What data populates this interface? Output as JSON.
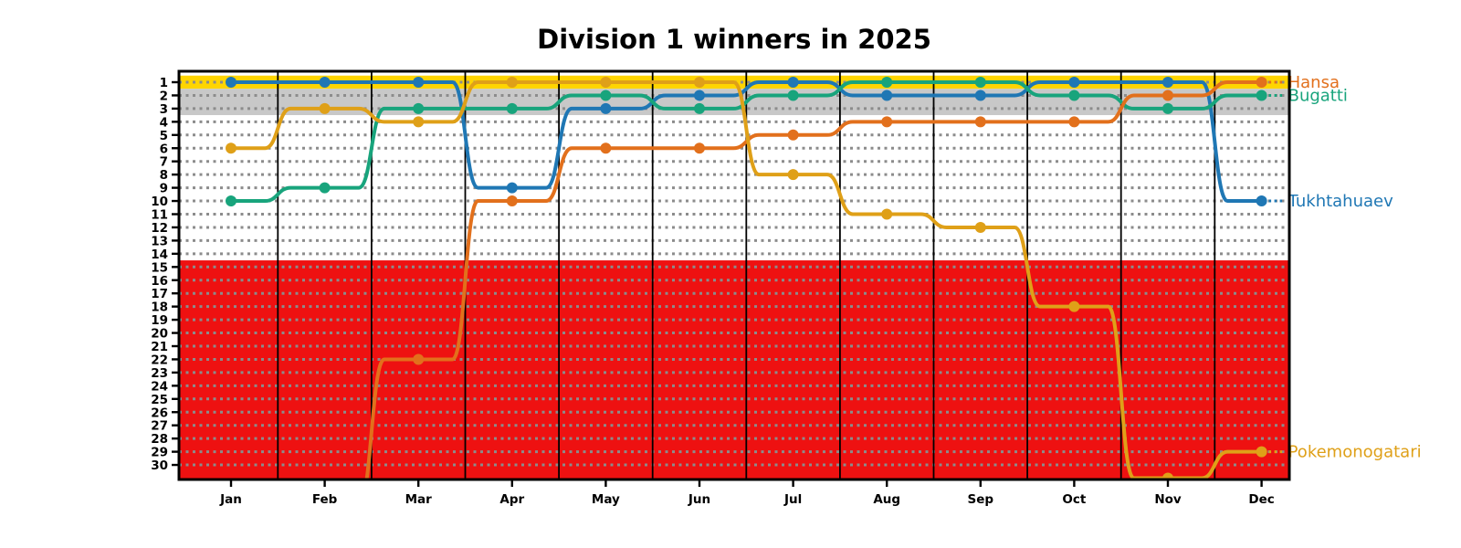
{
  "title": "Division 1 winners in 2025",
  "chart_data": {
    "type": "line",
    "subtype": "bump-rank-chart",
    "title": "Division 1 winners in 2025",
    "x_tick_labels": [
      "Jan",
      "Feb",
      "Mar",
      "Apr",
      "May",
      "Jun",
      "Jul",
      "Aug",
      "Sep",
      "Oct",
      "Nov",
      "Dec"
    ],
    "y_tick_labels": [
      1,
      2,
      3,
      4,
      5,
      6,
      7,
      8,
      9,
      10,
      11,
      12,
      13,
      14,
      15,
      16,
      17,
      18,
      19,
      20,
      21,
      22,
      23,
      24,
      25,
      26,
      27,
      28,
      29,
      30
    ],
    "ylim": [
      1,
      30
    ],
    "y_axis_inverted": true,
    "grid": "dotted-horizontal-per-rank",
    "grid_color": "#8c8c8c",
    "separator_color": "#000000",
    "legend_position": "right-edge-line-labels",
    "bands": [
      {
        "name": "rank-1-band",
        "from_rank": 0.5,
        "to_rank": 1.5,
        "color": "#ffd500"
      },
      {
        "name": "rank-2-3-band",
        "from_rank": 1.5,
        "to_rank": 3.5,
        "color": "#c8c8c8"
      },
      {
        "name": "rank-4-14-band",
        "from_rank": 3.5,
        "to_rank": 14.5,
        "color": "#ffffff"
      },
      {
        "name": "rank-15-30-band",
        "from_rank": 14.5,
        "to_rank": 31.6,
        "color": "#ee1111"
      }
    ],
    "series": [
      {
        "name": "Tukhtahuaev",
        "color": "#1f77b4",
        "values": [
          1,
          1,
          1,
          9,
          3,
          2,
          1,
          2,
          2,
          1,
          1,
          10
        ]
      },
      {
        "name": "Bugatti",
        "color": "#18a47c",
        "values": [
          10,
          9,
          3,
          3,
          2,
          3,
          2,
          1,
          1,
          2,
          3,
          2
        ]
      },
      {
        "name": "Hansa",
        "color": "#e2701c",
        "values": [
          null,
          null,
          22,
          10,
          6,
          6,
          5,
          4,
          4,
          4,
          2,
          1
        ]
      },
      {
        "name": "Pokemonogatari",
        "color": "#dfa018",
        "values": [
          6,
          3,
          4,
          1,
          1,
          1,
          8,
          11,
          12,
          18,
          31,
          29
        ]
      }
    ]
  }
}
